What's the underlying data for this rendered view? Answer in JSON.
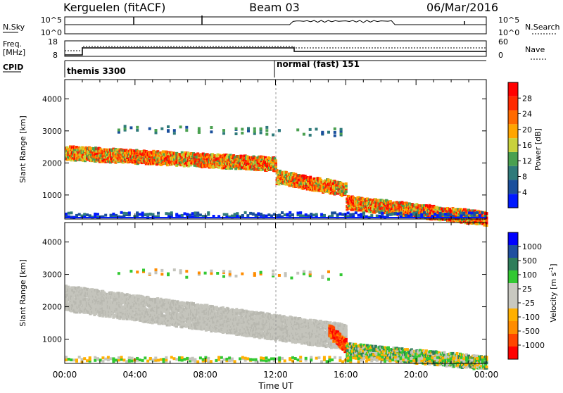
{
  "header": {
    "station": "Kerguelen (fitACF)",
    "beam": "Beam 03",
    "date": "06/Mar/2016"
  },
  "nsky_panel": {
    "left_label": "N.Sky",
    "left_ticks": [
      "10^5",
      "10^0"
    ],
    "right_label": "N.Search",
    "right_ticks": [
      "10^5",
      "10^0"
    ]
  },
  "freq_panel": {
    "left_label_line1": "Freq.",
    "left_label_line2": "[MHz]",
    "left_ticks": [
      "18",
      "8"
    ],
    "right_label": "Nave",
    "right_ticks": [
      "60",
      "0"
    ]
  },
  "cpid": {
    "label": "CPID",
    "modes": [
      {
        "name": "themis 3300"
      },
      {
        "name": "normal (fast) 151"
      }
    ]
  },
  "colors": {
    "power_scale": [
      "#0019ff",
      "#1a4f9c",
      "#2f7a7a",
      "#4aa050",
      "#c8d23c",
      "#ffa500",
      "#ff6a00",
      "#ff2a00",
      "#ff0000"
    ],
    "velocity_scale": [
      "#ff0000",
      "#ff4500",
      "#ff8c00",
      "#ffb000",
      "#c8c8c0",
      "#c8c8c0",
      "#32c832",
      "#2e7d5a",
      "#1f4fa0",
      "#0000ff"
    ],
    "ground_scatter": "#c4c4bc"
  },
  "chart_data": [
    {
      "type": "heatmap",
      "panel": "power",
      "xlabel": "",
      "ylabel": "Slant Range [km]",
      "xlim": [
        0,
        24
      ],
      "ylim": [
        250,
        4600
      ],
      "y_ticks": [
        "1000",
        "2000",
        "3000",
        "4000"
      ],
      "colorbar": {
        "label": "Power [dB]",
        "ticks": [
          "4",
          "8",
          "12",
          "16",
          "20",
          "24",
          "28"
        ]
      },
      "features": [
        {
          "t_start": 0,
          "t_end": 12,
          "range_start": 2350,
          "range_end": 2000,
          "level": "20-28 dB"
        },
        {
          "t_start": 12,
          "t_end": 16,
          "range_start": 1600,
          "range_end": 1200,
          "level": "12-28 dB"
        },
        {
          "t_start": 16,
          "t_end": 24,
          "range_start": 800,
          "range_end": 300,
          "level": "20-28 dB"
        }
      ]
    },
    {
      "type": "heatmap",
      "panel": "velocity",
      "xlabel": "Time UT",
      "ylabel": "Slant Range [km]",
      "xlim": [
        0,
        24
      ],
      "ylim": [
        250,
        4600
      ],
      "x_ticks": [
        "00:00",
        "04:00",
        "08:00",
        "12:00",
        "16:00",
        "20:00",
        "00:00"
      ],
      "y_ticks": [
        "1000",
        "2000",
        "3000",
        "4000"
      ],
      "colorbar": {
        "label": "Velocity [m s",
        "label_sup": "-1",
        "label_end": "]",
        "ticks": [
          "1000",
          "500",
          "100",
          "25",
          "-25",
          "-100",
          "-500",
          "-1000"
        ]
      },
      "features": [
        {
          "t_start": 0,
          "t_end": 16,
          "range_start": 2300,
          "range_end": 1100,
          "velocity": "-25 to 25 m/s (ground scatter)"
        },
        {
          "t_start": 15,
          "t_end": 16,
          "range_start": 1300,
          "range_end": 800,
          "velocity": "-500 to -1000 m/s"
        },
        {
          "t_start": 16,
          "t_end": 24,
          "range_start": 700,
          "range_end": 300,
          "velocity": "-100 to 100 m/s"
        }
      ]
    }
  ]
}
